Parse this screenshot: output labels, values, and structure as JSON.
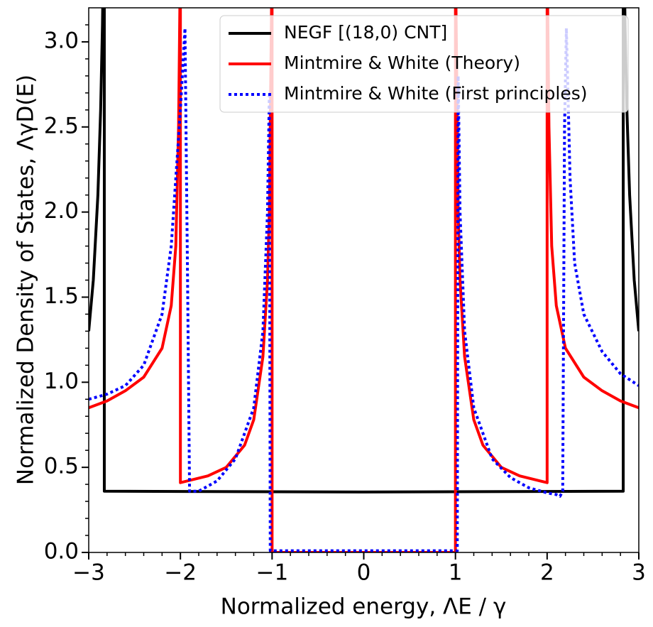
{
  "chart_data": {
    "type": "line",
    "x_label": "Normalized energy, ΛE / γ",
    "y_label": "Normalized Density of States, ΛγD(E)",
    "xlim": [
      -3,
      3
    ],
    "ylim": [
      0,
      3.2
    ],
    "xticks": [
      {
        "value": -3,
        "label": "−3"
      },
      {
        "value": -2,
        "label": "−2"
      },
      {
        "value": -1,
        "label": "−1"
      },
      0,
      1,
      2,
      3
    ],
    "yticks": [
      {
        "value": 0,
        "label": "0.0"
      },
      0.5,
      {
        "value": 1,
        "label": "1.0"
      },
      1.5,
      {
        "value": 2,
        "label": "2.0"
      },
      2.5,
      {
        "value": 3,
        "label": "3.0"
      }
    ],
    "xminorticks": [
      -2.8,
      -2.6,
      -2.4,
      -2.2,
      -1.8,
      -1.6,
      -1.4,
      -1.2,
      -0.8,
      -0.6,
      -0.4,
      -0.2,
      0.2,
      0.4,
      0.6,
      0.8,
      1.2,
      1.4,
      1.6,
      1.8,
      2.2,
      2.4,
      2.6,
      2.8
    ],
    "yminorticks": [
      0.1,
      0.2,
      0.3,
      0.4,
      0.6,
      0.7,
      0.8,
      0.9,
      1.1,
      1.2,
      1.3,
      1.4,
      1.6,
      1.7,
      1.8,
      1.9,
      2.1,
      2.2,
      2.3,
      2.4,
      2.6,
      2.7,
      2.8,
      2.9,
      3.1
    ],
    "legend": "upper right",
    "series": [
      {
        "name": "NEGF [(18,0) CNT]",
        "color": "#000000",
        "linestyle": "solid",
        "x": [
          -3,
          -2.95,
          -2.9,
          -2.87,
          -2.85,
          -2.84,
          -2.83,
          -2.83,
          0,
          2.83,
          2.83,
          2.84,
          2.85,
          2.87,
          2.9,
          2.95,
          3
        ],
        "values": [
          1.3,
          1.6,
          2.1,
          2.6,
          3.1,
          3.5,
          4.0,
          0.36,
          0.355,
          0.36,
          4.0,
          3.5,
          3.1,
          2.6,
          2.1,
          1.6,
          1.3
        ]
      },
      {
        "name": "Mintmire & White (Theory)",
        "color": "#ff0000",
        "linestyle": "solid",
        "x": [
          -3,
          -2.8,
          -2.6,
          -2.4,
          -2.2,
          -2.1,
          -2.05,
          -2.02,
          -2,
          -2,
          -1.7,
          -1.5,
          -1.3,
          -1.2,
          -1.1,
          -1.05,
          -1.03,
          -1.01,
          -1,
          -1,
          1,
          1,
          1.01,
          1.03,
          1.05,
          1.1,
          1.2,
          1.3,
          1.5,
          1.7,
          2,
          2,
          2.02,
          2.05,
          2.1,
          2.2,
          2.4,
          2.6,
          2.8,
          3
        ],
        "values": [
          0.85,
          0.89,
          0.95,
          1.03,
          1.2,
          1.45,
          1.8,
          2.5,
          3.5,
          0.41,
          0.45,
          0.5,
          0.63,
          0.78,
          1.15,
          1.6,
          2.0,
          3.0,
          3.5,
          0,
          0,
          3.5,
          3.0,
          2.0,
          1.6,
          1.15,
          0.78,
          0.63,
          0.5,
          0.45,
          0.41,
          3.5,
          2.5,
          1.8,
          1.45,
          1.2,
          1.03,
          0.95,
          0.89,
          0.85
        ]
      },
      {
        "name": "Mintmire & White (First principles)",
        "color": "#0000ff",
        "linestyle": "dotted",
        "x": [
          -3,
          -2.8,
          -2.6,
          -2.4,
          -2.2,
          -2.1,
          -2.0,
          -1.95,
          -1.92,
          -1.9,
          -1.8,
          -1.6,
          -1.4,
          -1.2,
          -1.1,
          -1.05,
          -1.03,
          -1.02,
          1.02,
          1.03,
          1.05,
          1.1,
          1.2,
          1.4,
          1.6,
          1.8,
          2.0,
          2.1,
          2.14,
          2.17,
          2.19,
          2.21,
          2.25,
          2.3,
          2.4,
          2.6,
          2.8,
          3.0
        ],
        "values": [
          0.9,
          0.93,
          0.98,
          1.1,
          1.4,
          1.8,
          2.6,
          3.08,
          1.5,
          0.36,
          0.36,
          0.42,
          0.55,
          0.85,
          1.3,
          2.0,
          2.7,
          0.01,
          0.01,
          2.8,
          2.0,
          1.3,
          0.85,
          0.55,
          0.44,
          0.38,
          0.35,
          0.34,
          0.33,
          0.36,
          2.5,
          3.08,
          2.2,
          1.7,
          1.4,
          1.18,
          1.05,
          0.98
        ]
      }
    ]
  }
}
